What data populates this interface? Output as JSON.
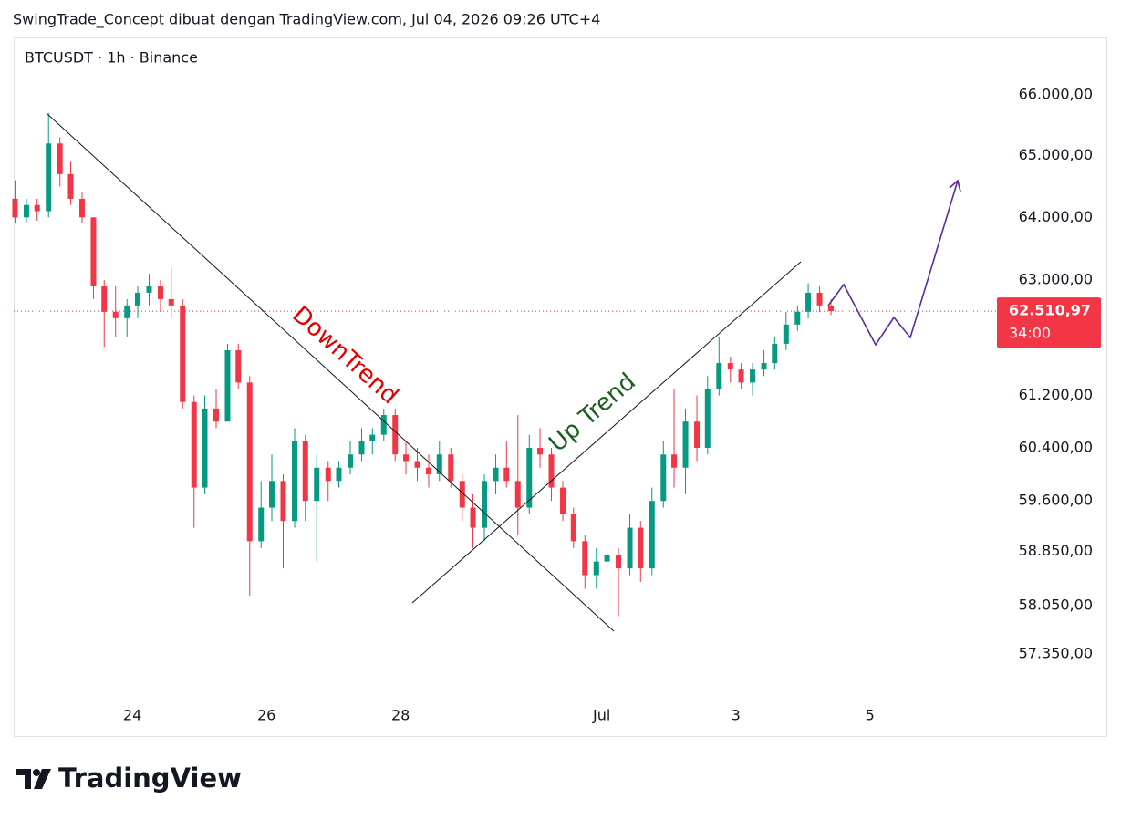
{
  "header": "SwingTrade_Concept dibuat dengan TradingView.com, Jul 04, 2026 09:26 UTC+4",
  "brand": "TradingView",
  "chart_data": {
    "type": "candlestick",
    "title": "BTCUSDT · 1h · Binance",
    "log_scale": true,
    "up_color": "#089981",
    "down_color": "#f23645",
    "annotations": [
      "DownTrend",
      "Up Trend"
    ],
    "price_line": {
      "value": 62510.97,
      "label": "62.510,97"
    },
    "countdown": "34:00",
    "xlim": [
      22.23,
      36.8
    ],
    "xticks": [
      24,
      26,
      28,
      {
        "value": 31,
        "label": "Jul"
      },
      {
        "value": 33,
        "label": "3"
      },
      {
        "value": 35,
        "label": "5"
      }
    ],
    "ylim": [
      56660,
      66945
    ],
    "yticks": [
      {
        "value": 66000,
        "label": "66.000,00"
      },
      {
        "value": 65000,
        "label": "65.000,00"
      },
      {
        "value": 64000,
        "label": "64.000,00"
      },
      {
        "value": 63000,
        "label": "63.000,00"
      },
      {
        "value": 61200,
        "label": "61.200,00"
      },
      {
        "value": 60400,
        "label": "60.400,00"
      },
      {
        "value": 59600,
        "label": "59.600,00"
      },
      {
        "value": 58850,
        "label": "58.850,00"
      },
      {
        "value": 58050,
        "label": "58.050,00"
      },
      {
        "value": 57350,
        "label": "57.350,00"
      }
    ],
    "x": [
      22.25,
      22.42,
      22.58,
      22.75,
      22.92,
      23.08,
      23.25,
      23.42,
      23.58,
      23.75,
      23.92,
      24.08,
      24.25,
      24.42,
      24.58,
      24.75,
      24.92,
      25.08,
      25.25,
      25.42,
      25.58,
      25.75,
      25.92,
      26.08,
      26.25,
      26.42,
      26.58,
      26.75,
      26.92,
      27.08,
      27.25,
      27.42,
      27.58,
      27.75,
      27.92,
      28.08,
      28.25,
      28.42,
      28.58,
      28.75,
      28.92,
      29.08,
      29.25,
      29.42,
      29.58,
      29.75,
      29.92,
      30.08,
      30.25,
      30.42,
      30.58,
      30.75,
      30.92,
      31.08,
      31.25,
      31.42,
      31.58,
      31.75,
      31.92,
      32.08,
      32.25,
      32.42,
      32.58,
      32.75,
      32.92,
      33.08,
      33.25,
      33.42,
      33.58,
      33.75,
      33.92,
      34.08,
      34.25,
      34.42
    ],
    "open": [
      64300,
      64000,
      64200,
      64100,
      65200,
      64700,
      64300,
      64000,
      62900,
      62500,
      62400,
      62600,
      62800,
      62900,
      62700,
      62600,
      61100,
      59800,
      61000,
      60800,
      61900,
      61400,
      59000,
      59500,
      59900,
      59300,
      60500,
      59600,
      60100,
      59900,
      60100,
      60300,
      60500,
      60600,
      60900,
      60300,
      60200,
      60100,
      60000,
      60300,
      59900,
      59500,
      59200,
      59900,
      60100,
      59900,
      59500,
      60400,
      60300,
      59800,
      59400,
      59000,
      58500,
      58700,
      58800,
      58600,
      59200,
      58600,
      59600,
      60300,
      60100,
      60800,
      60400,
      61300,
      61700,
      61600,
      61400,
      61600,
      61700,
      62000,
      62300,
      62500,
      62800,
      62600
    ],
    "high": [
      64600,
      64300,
      64300,
      65700,
      65300,
      64900,
      64400,
      64000,
      63000,
      62900,
      62700,
      62900,
      63100,
      63000,
      63200,
      62700,
      61200,
      61200,
      61300,
      62000,
      62000,
      61500,
      59900,
      60300,
      60000,
      60700,
      60600,
      60300,
      60200,
      60200,
      60500,
      60700,
      60700,
      61000,
      61000,
      60500,
      60400,
      60300,
      60500,
      60400,
      60000,
      59700,
      60000,
      60300,
      60500,
      60900,
      60600,
      60700,
      60400,
      59900,
      59500,
      59100,
      58900,
      58900,
      58900,
      59400,
      59300,
      59800,
      60500,
      61300,
      61000,
      61200,
      61500,
      62100,
      61800,
      61700,
      61700,
      61900,
      62100,
      62500,
      62600,
      62950,
      62900,
      62700
    ],
    "low": [
      63900,
      63900,
      63950,
      64000,
      64500,
      64200,
      63900,
      62700,
      61950,
      62100,
      62100,
      62400,
      62600,
      62500,
      62400,
      61000,
      59200,
      59700,
      60700,
      60800,
      61300,
      58200,
      58900,
      59300,
      58600,
      59200,
      59300,
      58700,
      59600,
      59800,
      60000,
      60200,
      60300,
      60500,
      60200,
      60000,
      59900,
      59800,
      59900,
      59800,
      59300,
      58900,
      59000,
      59700,
      59800,
      59100,
      59400,
      60100,
      59600,
      59300,
      58900,
      58300,
      58300,
      58500,
      57900,
      58500,
      58400,
      58500,
      59500,
      59800,
      59700,
      60200,
      60300,
      61200,
      61400,
      61300,
      61200,
      61500,
      61600,
      61900,
      62200,
      62400,
      62500,
      62450
    ],
    "close": [
      64000,
      64200,
      64100,
      65200,
      64700,
      64300,
      64000,
      62900,
      62500,
      62400,
      62600,
      62800,
      62900,
      62700,
      62600,
      61100,
      59800,
      61000,
      60800,
      61900,
      61400,
      59000,
      59500,
      59900,
      59300,
      60500,
      59600,
      60100,
      59900,
      60100,
      60300,
      60500,
      60600,
      60900,
      60300,
      60200,
      60100,
      60000,
      60300,
      59900,
      59500,
      59200,
      59900,
      60100,
      59900,
      59500,
      60400,
      60300,
      59800,
      59400,
      59000,
      58500,
      58700,
      58800,
      58600,
      59200,
      58600,
      59600,
      60300,
      60100,
      60800,
      60400,
      61300,
      61700,
      61600,
      61400,
      61600,
      61700,
      62000,
      62300,
      62500,
      62800,
      62600,
      62510.97
    ]
  }
}
